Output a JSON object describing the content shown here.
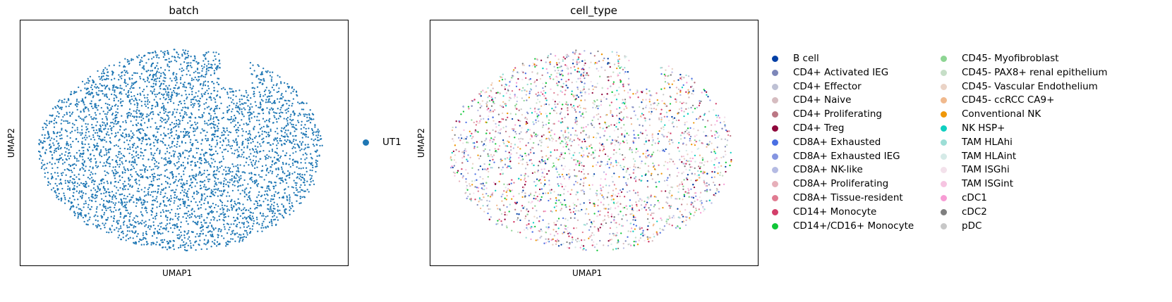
{
  "chart_data": [
    {
      "type": "scatter",
      "title": "batch",
      "xlabel": "UMAP1",
      "ylabel": "UMAP2",
      "xticks": [],
      "yticks": [],
      "grid": false,
      "legend_placement": "right",
      "series": [
        {
          "name": "UT1",
          "color": "#1f77b4"
        }
      ]
    },
    {
      "type": "scatter",
      "title": "cell_type",
      "xlabel": "UMAP1",
      "ylabel": "UMAP2",
      "xticks": [],
      "yticks": [],
      "grid": false,
      "legend_placement": "right",
      "legend_columns": 2,
      "series": [
        {
          "name": "B cell",
          "color": "#023fa5"
        },
        {
          "name": "CD4+ Activated IEG",
          "color": "#7d87b9"
        },
        {
          "name": "CD4+ Effector",
          "color": "#bec1d4"
        },
        {
          "name": "CD4+ Naive",
          "color": "#d6bcc0"
        },
        {
          "name": "CD4+ Proliferating",
          "color": "#bb7784"
        },
        {
          "name": "CD4+ Treg",
          "color": "#8e063b"
        },
        {
          "name": "CD8A+ Exhausted",
          "color": "#4a6fe3"
        },
        {
          "name": "CD8A+ Exhausted IEG",
          "color": "#8595e1"
        },
        {
          "name": "CD8A+ NK-like",
          "color": "#b5bbe3"
        },
        {
          "name": "CD8A+ Proliferating",
          "color": "#e6afb9"
        },
        {
          "name": "CD8A+ Tissue-resident",
          "color": "#e07b91"
        },
        {
          "name": "CD14+ Monocyte",
          "color": "#d33f6a"
        },
        {
          "name": "CD14+/CD16+ Monocyte",
          "color": "#11c638"
        },
        {
          "name": "CD45- Myofibroblast",
          "color": "#8dd593"
        },
        {
          "name": "CD45- PAX8+ renal epithelium",
          "color": "#c6dec7"
        },
        {
          "name": "CD45- Vascular Endothelium",
          "color": "#ead3c6"
        },
        {
          "name": "CD45- ccRCC CA9+",
          "color": "#f0b98d"
        },
        {
          "name": "Conventional NK",
          "color": "#ef9708"
        },
        {
          "name": "NK HSP+",
          "color": "#0fcfc0"
        },
        {
          "name": "TAM HLAhi",
          "color": "#9cded6"
        },
        {
          "name": "TAM HLAint",
          "color": "#d5eae7"
        },
        {
          "name": "TAM ISGhi",
          "color": "#f3e1eb"
        },
        {
          "name": "TAM ISGint",
          "color": "#f6c4e1"
        },
        {
          "name": "cDC1",
          "color": "#f79cd4"
        },
        {
          "name": "cDC2",
          "color": "#7f7f7f"
        },
        {
          "name": "pDC",
          "color": "#c7c7c7"
        }
      ]
    }
  ]
}
